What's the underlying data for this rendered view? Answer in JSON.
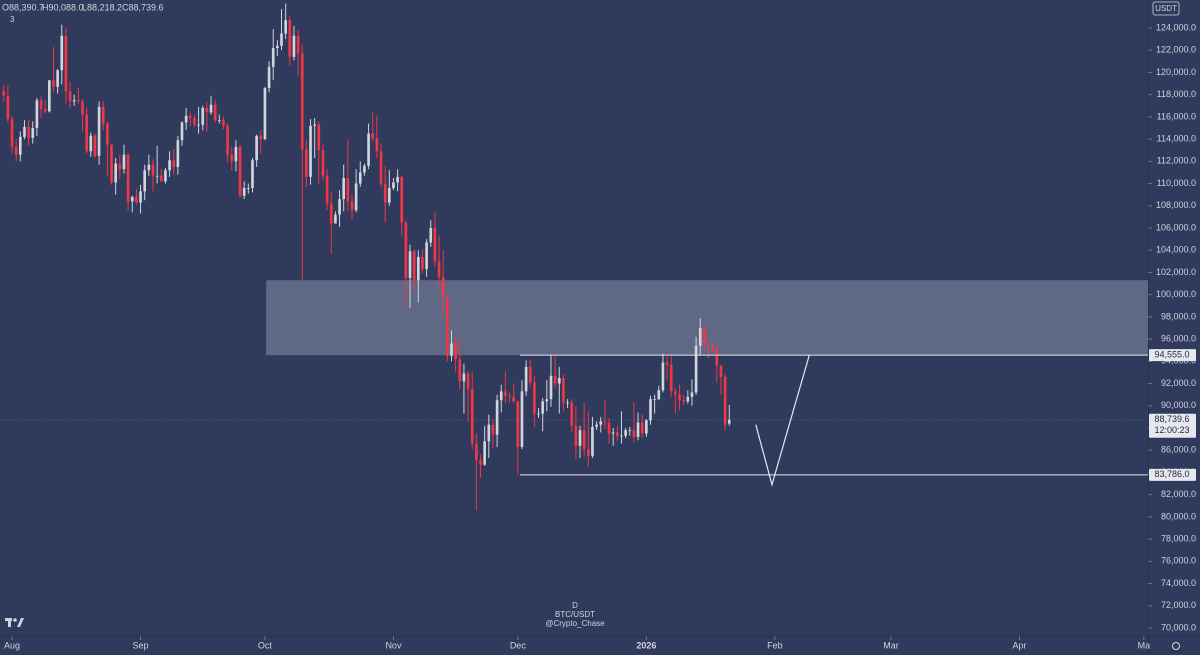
{
  "chart_data": {
    "type": "candlestick",
    "header": [
      "O88,390.7",
      "H90,088.0",
      "L88,218.2",
      "C88,739.6"
    ],
    "indicator_count": "3",
    "currency": "USDT",
    "interval": "D",
    "symbol": "BTC/USDT",
    "author": "@Crypto_Chase",
    "up_color": "#d1d4dc",
    "down_color": "#f23645",
    "xlim": [
      -0.9,
      276
    ],
    "ylim": [
      69280,
      126520
    ],
    "xticks": [
      {
        "value": 2,
        "label": "Aug"
      },
      {
        "value": 33,
        "label": "Sep"
      },
      {
        "value": 63,
        "label": "Oct"
      },
      {
        "value": 94,
        "label": "Nov"
      },
      {
        "value": 124,
        "label": "Dec"
      },
      {
        "value": 155,
        "label": "2026"
      },
      {
        "value": 186,
        "label": "Feb"
      },
      {
        "value": 214,
        "label": "Mar"
      },
      {
        "value": 245,
        "label": "Apr"
      },
      {
        "value": 275,
        "label": "Ma"
      }
    ],
    "yticks": [
      {
        "value": 70000,
        "label": "70,000.0"
      },
      {
        "value": 72000,
        "label": "72,000.0"
      },
      {
        "value": 74000,
        "label": "74,000.0"
      },
      {
        "value": 76000,
        "label": "76,000.0"
      },
      {
        "value": 78000,
        "label": "78,000.0"
      },
      {
        "value": 80000,
        "label": "80,000.0"
      },
      {
        "value": 82000,
        "label": "82,000.0"
      },
      {
        "value": 84000,
        "label": "84,000.0"
      },
      {
        "value": 86000,
        "label": "86,000.0"
      },
      {
        "value": 88000,
        "label": "88,000.0"
      },
      {
        "value": 90000,
        "label": "90,000.0"
      },
      {
        "value": 92000,
        "label": "92,000.0"
      },
      {
        "value": 94000,
        "label": "94,000.0"
      },
      {
        "value": 96000,
        "label": "96,000.0"
      },
      {
        "value": 98000,
        "label": "98,000.0"
      },
      {
        "value": 100000,
        "label": "100,000.0"
      },
      {
        "value": 102000,
        "label": "102,000.0"
      },
      {
        "value": 104000,
        "label": "104,000.0"
      },
      {
        "value": 106000,
        "label": "106,000.0"
      },
      {
        "value": 108000,
        "label": "108,000.0"
      },
      {
        "value": 110000,
        "label": "110,000.0"
      },
      {
        "value": 112000,
        "label": "112,000.0"
      },
      {
        "value": 114000,
        "label": "114,000.0"
      },
      {
        "value": 116000,
        "label": "116,000.0"
      },
      {
        "value": 118000,
        "label": "118,000.0"
      },
      {
        "value": 120000,
        "label": "120,000.0"
      },
      {
        "value": 122000,
        "label": "122,000.0"
      },
      {
        "value": 124000,
        "label": "124,000.0"
      }
    ],
    "grid": false,
    "zone": {
      "x_start": 63.3,
      "y_top": 101300,
      "y_bottom": 94555
    },
    "levels": [
      {
        "value": 94555,
        "label": "94,555.0",
        "x_start": 124.5
      },
      {
        "value": 83786,
        "label": "83,786.0",
        "x_start": 124.5
      }
    ],
    "projection": {
      "x": [
        181.4,
        185.3,
        194.3
      ],
      "y": [
        88300,
        82900,
        94555
      ]
    },
    "last_price": {
      "value": 88739.6,
      "label": "88,739.6",
      "countdown": "12:00:23"
    },
    "ohlc": [
      [
        118300,
        118900,
        117400,
        117900
      ],
      [
        117900,
        118900,
        115500,
        115800
      ],
      [
        115800,
        116100,
        112700,
        113300
      ],
      [
        113300,
        114000,
        112000,
        112600
      ],
      [
        112600,
        114700,
        112000,
        114200
      ],
      [
        114200,
        115700,
        114000,
        115100
      ],
      [
        115100,
        115700,
        113400,
        114100
      ],
      [
        114100,
        115600,
        113600,
        115000
      ],
      [
        115000,
        117700,
        114300,
        117500
      ],
      [
        117500,
        117800,
        115900,
        116700
      ],
      [
        116700,
        117500,
        116300,
        116500
      ],
      [
        116500,
        119300,
        116400,
        119300
      ],
      [
        119300,
        122300,
        118200,
        118700
      ],
      [
        118700,
        120300,
        118100,
        120200
      ],
      [
        120200,
        124300,
        118900,
        123300
      ],
      [
        123300,
        124000,
        117200,
        118300
      ],
      [
        118300,
        119200,
        116800,
        117400
      ],
      [
        117400,
        118000,
        117000,
        117500
      ],
      [
        117500,
        118600,
        117200,
        117400
      ],
      [
        117400,
        117600,
        114700,
        116200
      ],
      [
        116200,
        116800,
        112700,
        112900
      ],
      [
        112900,
        114600,
        112400,
        114300
      ],
      [
        114300,
        114500,
        112300,
        112500
      ],
      [
        112500,
        117400,
        111700,
        116900
      ],
      [
        116900,
        117400,
        114800,
        115400
      ],
      [
        115400,
        115600,
        110700,
        113500
      ],
      [
        113500,
        113600,
        109900,
        110100
      ],
      [
        110100,
        112300,
        109000,
        111800
      ],
      [
        111800,
        112600,
        110400,
        111300
      ],
      [
        111300,
        113500,
        110900,
        112600
      ],
      [
        112600,
        112700,
        107500,
        108400
      ],
      [
        108400,
        108900,
        107400,
        108800
      ],
      [
        108800,
        109500,
        108100,
        108300
      ],
      [
        108300,
        109900,
        107300,
        109300
      ],
      [
        109300,
        111700,
        108500,
        111200
      ],
      [
        111200,
        112600,
        110700,
        111700
      ],
      [
        111700,
        112200,
        109300,
        110700
      ],
      [
        110700,
        113400,
        110000,
        110700
      ],
      [
        110700,
        111300,
        110200,
        110200
      ],
      [
        110200,
        111400,
        110000,
        111200
      ],
      [
        111200,
        112900,
        110600,
        112100
      ],
      [
        112100,
        113100,
        110800,
        111500
      ],
      [
        111500,
        114300,
        110800,
        113900
      ],
      [
        113900,
        115600,
        113400,
        115500
      ],
      [
        115500,
        116800,
        114800,
        116100
      ],
      [
        116100,
        116400,
        115200,
        115900
      ],
      [
        115900,
        116200,
        115100,
        115300
      ],
      [
        115300,
        116900,
        114500,
        115300
      ],
      [
        115300,
        117000,
        114800,
        116800
      ],
      [
        116800,
        117300,
        114700,
        116400
      ],
      [
        116400,
        117900,
        116200,
        117100
      ],
      [
        117100,
        117500,
        115500,
        115700
      ],
      [
        115700,
        116200,
        115400,
        115700
      ],
      [
        115700,
        116000,
        114900,
        115200
      ],
      [
        115200,
        115400,
        111900,
        112600
      ],
      [
        112600,
        113300,
        111200,
        112000
      ],
      [
        112000,
        113900,
        111100,
        113300
      ],
      [
        113300,
        113500,
        108700,
        108900
      ],
      [
        108900,
        110200,
        108600,
        109600
      ],
      [
        109600,
        110000,
        109100,
        109600
      ],
      [
        109600,
        112300,
        109200,
        112100
      ],
      [
        112100,
        114400,
        111500,
        114300
      ],
      [
        114300,
        114800,
        112700,
        114000
      ],
      [
        114000,
        118700,
        113900,
        118600
      ],
      [
        118600,
        121000,
        118200,
        120500
      ],
      [
        120500,
        123900,
        119300,
        122200
      ],
      [
        122200,
        122900,
        121500,
        122400
      ],
      [
        122400,
        125700,
        122000,
        123500
      ],
      [
        123500,
        126200,
        123000,
        124700
      ],
      [
        124700,
        125100,
        120600,
        121400
      ],
      [
        121400,
        124200,
        121100,
        123300
      ],
      [
        123300,
        123800,
        119700,
        121700
      ],
      [
        121700,
        122500,
        101300,
        113100
      ],
      [
        113100,
        113900,
        109700,
        110600
      ],
      [
        110600,
        115800,
        109900,
        115200
      ],
      [
        115200,
        115900,
        112300,
        115300
      ],
      [
        115300,
        115600,
        110000,
        113000
      ],
      [
        113000,
        113600,
        110300,
        110700
      ],
      [
        110700,
        111300,
        107600,
        108200
      ],
      [
        108200,
        109200,
        103700,
        106400
      ],
      [
        106400,
        107500,
        106400,
        107200
      ],
      [
        107200,
        109400,
        106100,
        108600
      ],
      [
        108600,
        111700,
        107500,
        110500
      ],
      [
        110500,
        114000,
        107500,
        108400
      ],
      [
        108400,
        109000,
        106700,
        107600
      ],
      [
        107600,
        111300,
        107400,
        110000
      ],
      [
        110000,
        112000,
        109700,
        111000
      ],
      [
        111000,
        111800,
        110700,
        111600
      ],
      [
        111600,
        115400,
        111300,
        114500
      ],
      [
        114500,
        116400,
        113800,
        114100
      ],
      [
        114100,
        116100,
        112300,
        112900
      ],
      [
        112900,
        113600,
        109700,
        110000
      ],
      [
        110000,
        111600,
        106500,
        108300
      ],
      [
        108300,
        111200,
        108000,
        109600
      ],
      [
        109600,
        110500,
        109400,
        110100
      ],
      [
        110100,
        111300,
        109300,
        110600
      ],
      [
        110600,
        110700,
        105300,
        106500
      ],
      [
        106500,
        106700,
        98900,
        101500
      ],
      [
        101500,
        104500,
        98800,
        103900
      ],
      [
        103900,
        104100,
        100300,
        101300
      ],
      [
        101300,
        104000,
        99300,
        103400
      ],
      [
        103400,
        104100,
        101900,
        102300
      ],
      [
        102300,
        105000,
        101600,
        104700
      ],
      [
        104700,
        106700,
        104300,
        106000
      ],
      [
        106000,
        107400,
        102500,
        103000
      ],
      [
        103000,
        105300,
        100800,
        101600
      ],
      [
        101600,
        104000,
        98100,
        99700
      ],
      [
        99700,
        99800,
        94000,
        94500
      ],
      [
        94500,
        96800,
        94000,
        95600
      ],
      [
        95600,
        96200,
        93000,
        94200
      ],
      [
        94200,
        96000,
        91500,
        92200
      ],
      [
        92200,
        93800,
        89300,
        92900
      ],
      [
        92900,
        93100,
        88600,
        91500
      ],
      [
        91500,
        93100,
        86100,
        86600
      ],
      [
        86600,
        87500,
        80600,
        85100
      ],
      [
        85100,
        85600,
        83500,
        84700
      ],
      [
        84700,
        88200,
        84600,
        86800
      ],
      [
        86800,
        89200,
        85300,
        88300
      ],
      [
        88300,
        88800,
        86200,
        87400
      ],
      [
        87400,
        91000,
        86300,
        90500
      ],
      [
        90500,
        91900,
        89400,
        91300
      ],
      [
        91300,
        93100,
        90200,
        90900
      ],
      [
        90900,
        91200,
        90300,
        90800
      ],
      [
        90800,
        92000,
        90300,
        90400
      ],
      [
        90400,
        90400,
        83800,
        86300
      ],
      [
        86300,
        92300,
        86100,
        91300
      ],
      [
        91300,
        94100,
        90900,
        93500
      ],
      [
        93500,
        94100,
        91700,
        92100
      ],
      [
        92100,
        92700,
        88100,
        89300
      ],
      [
        89300,
        89800,
        88900,
        89300
      ],
      [
        89300,
        90700,
        87700,
        90400
      ],
      [
        90400,
        92300,
        89500,
        90600
      ],
      [
        90600,
        94600,
        89900,
        92700
      ],
      [
        92700,
        94500,
        91600,
        92000
      ],
      [
        92000,
        93500,
        89300,
        92500
      ],
      [
        92500,
        92800,
        89500,
        90300
      ],
      [
        90300,
        90600,
        89800,
        90300
      ],
      [
        90300,
        90600,
        87600,
        88200
      ],
      [
        88200,
        90000,
        85200,
        86400
      ],
      [
        86400,
        88200,
        85300,
        87800
      ],
      [
        87800,
        90300,
        85400,
        86100
      ],
      [
        86100,
        89500,
        84500,
        85500
      ],
      [
        85500,
        89000,
        85300,
        88100
      ],
      [
        88100,
        88600,
        87800,
        88300
      ],
      [
        88300,
        89000,
        87600,
        88600
      ],
      [
        88600,
        90500,
        87900,
        88500
      ],
      [
        88500,
        88900,
        86600,
        87500
      ],
      [
        87500,
        88000,
        86400,
        87600
      ],
      [
        87600,
        88200,
        86800,
        87300
      ],
      [
        87300,
        89500,
        86600,
        87300
      ],
      [
        87300,
        88000,
        87100,
        87800
      ],
      [
        87800,
        88100,
        87300,
        87800
      ],
      [
        87800,
        90300,
        86700,
        87200
      ],
      [
        87200,
        89400,
        86900,
        88500
      ],
      [
        88500,
        89200,
        87100,
        87500
      ],
      [
        87500,
        88800,
        87200,
        88700
      ],
      [
        88700,
        90900,
        88300,
        90600
      ],
      [
        90600,
        91000,
        89300,
        90600
      ],
      [
        90600,
        91800,
        90500,
        91400
      ],
      [
        91400,
        94700,
        91200,
        93900
      ],
      [
        93900,
        94400,
        92300,
        93700
      ],
      [
        93700,
        94500,
        90800,
        91300
      ],
      [
        91300,
        91600,
        89300,
        91000
      ],
      [
        91000,
        91900,
        89600,
        90500
      ],
      [
        90500,
        91000,
        90100,
        90400
      ],
      [
        90400,
        91400,
        90200,
        90800
      ],
      [
        90800,
        92400,
        90000,
        91200
      ],
      [
        91200,
        96200,
        91000,
        95400
      ],
      [
        95400,
        97900,
        94500,
        97000
      ],
      [
        97000,
        97200,
        94900,
        95600
      ],
      [
        95600,
        95800,
        94300,
        95500
      ],
      [
        95500,
        95600,
        94900,
        95100
      ],
      [
        95100,
        95400,
        92100,
        93600
      ],
      [
        93600,
        93700,
        91000,
        92600
      ],
      [
        92600,
        92800,
        87800,
        88300
      ],
      [
        88390.7,
        90088,
        88218.2,
        88739.6
      ]
    ]
  }
}
